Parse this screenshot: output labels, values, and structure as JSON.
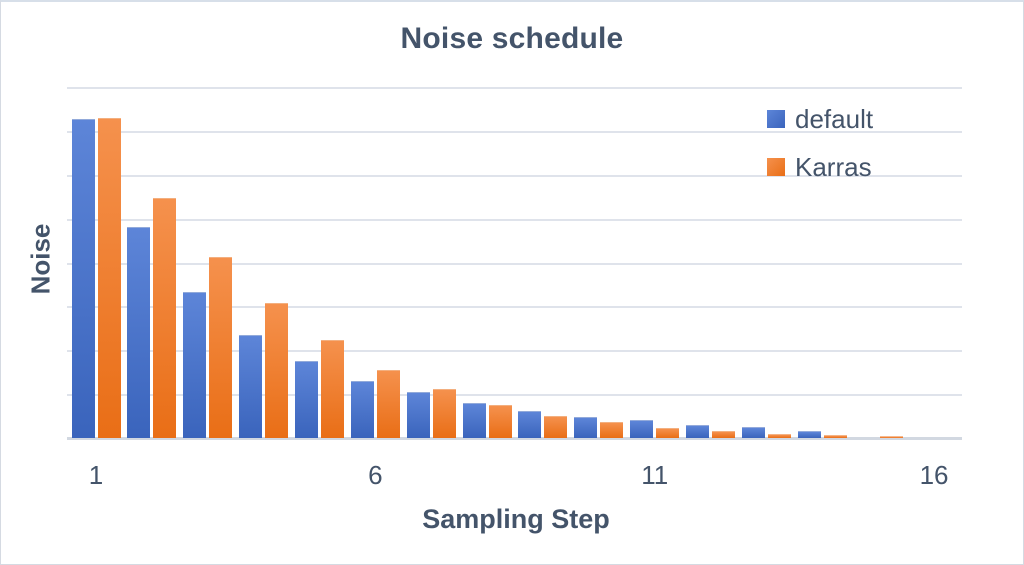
{
  "colors": {
    "text": "#44546A",
    "gridline": "#DFE3EB",
    "axis_line": "#D2D8E1",
    "background": "#FFFFFF",
    "frame_border": "#D5DAE2"
  },
  "chart_data": {
    "type": "bar",
    "title": "Noise schedule",
    "xlabel": "Sampling Step",
    "ylabel": "Noise",
    "categories": [
      1,
      2,
      3,
      4,
      5,
      6,
      7,
      8,
      9,
      10,
      11,
      12,
      13,
      14,
      15,
      16
    ],
    "x_ticks": [
      {
        "label": "1",
        "step": 1
      },
      {
        "label": "6",
        "step": 6
      },
      {
        "label": "11",
        "step": 11
      },
      {
        "label": "16",
        "step": 16
      }
    ],
    "ylim": [
      0,
      1.1
    ],
    "grid": "horizontal",
    "gridline_count": 8,
    "legend_position": "top-right",
    "series": [
      {
        "name": "default",
        "color": "#4472C4",
        "gradient_top": "#5D85D8",
        "gradient_bottom": "#3A64BC",
        "values": [
          1.0,
          0.661,
          0.456,
          0.322,
          0.241,
          0.178,
          0.144,
          0.109,
          0.086,
          0.067,
          0.055,
          0.042,
          0.033,
          0.023,
          0.001,
          0.001
        ]
      },
      {
        "name": "Karras",
        "color": "#ED7D31",
        "gradient_top": "#F5914D",
        "gradient_bottom": "#E96E16",
        "values": [
          1.003,
          0.753,
          0.566,
          0.422,
          0.306,
          0.213,
          0.153,
          0.103,
          0.07,
          0.05,
          0.031,
          0.022,
          0.014,
          0.009,
          0.006,
          0.001
        ]
      }
    ]
  }
}
